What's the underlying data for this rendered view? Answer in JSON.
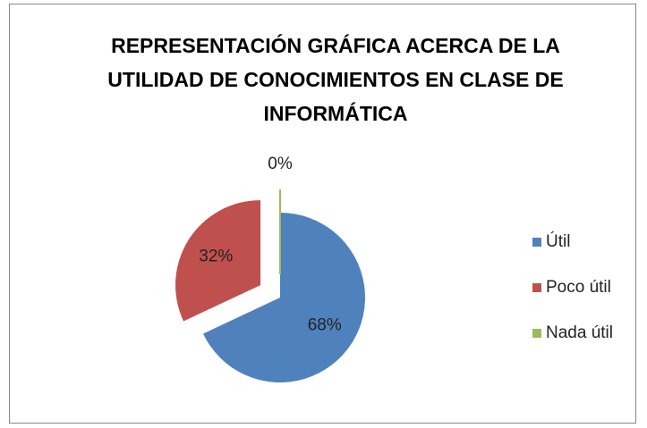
{
  "chart_data": {
    "type": "pie",
    "title": "REPRESENTACIÓN GRÁFICA ACERCA DE LA UTILIDAD DE CONOCIMIENTOS EN CLASE DE INFORMÁTICA",
    "categories": [
      "Útil",
      "Poco útil",
      "Nada útil"
    ],
    "values": [
      68,
      32,
      0
    ],
    "value_labels": [
      "68%",
      "32%",
      "0%"
    ],
    "colors": [
      "#4f81bd",
      "#c0504d",
      "#9bbb59"
    ],
    "legend": "right"
  }
}
